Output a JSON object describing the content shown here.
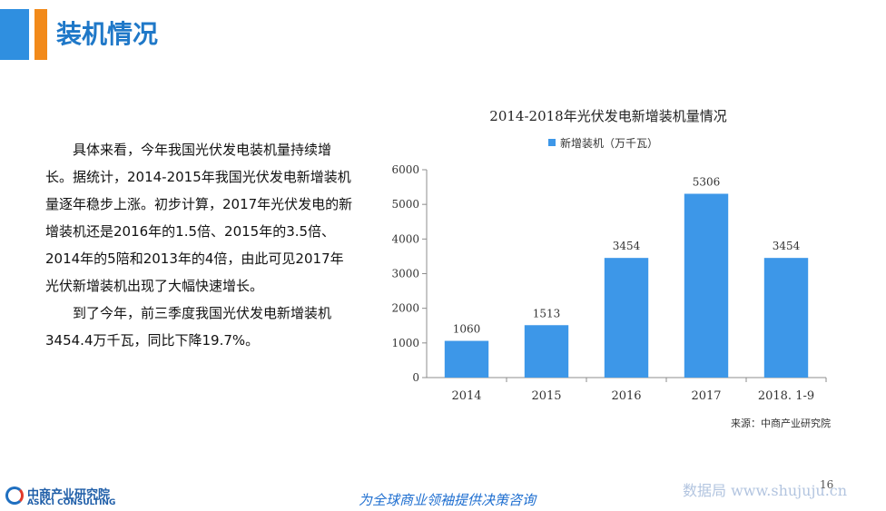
{
  "header": {
    "title": "装机情况"
  },
  "body_text": {
    "para1": "具体来看，今年我国光伏发电装机量持续增长。据统计，2014-2015年我国光伏发电新增装机量逐年稳步上涨。初步计算，2017年光伏发电的新增装机还是2016年的1.5倍、2015年的3.5倍、2014年的5陪和2013年的4倍，由此可见2017年光伏新增装机出现了大幅快速增长。",
    "para2": "到了今年，前三季度我国光伏发电新增装机3454.4万千瓦，同比下降19.7%。"
  },
  "chart_data": {
    "type": "bar",
    "title": "2014-2018年光伏发电新增装机量情况",
    "categories": [
      "2014",
      "2015",
      "2016",
      "2017",
      "2018. 1-9"
    ],
    "series": [
      {
        "name": "新增装机（万千瓦）",
        "values": [
          1060,
          1513,
          3454,
          5306,
          3454
        ],
        "color": "#3d97e8"
      }
    ],
    "ylim": [
      0,
      6000
    ],
    "yticks": [
      0,
      1000,
      2000,
      3000,
      4000,
      5000,
      6000
    ],
    "data_labels": [
      "1060",
      "1513",
      "3454",
      "5306",
      "3454"
    ],
    "legend_position": "top",
    "grid": false
  },
  "source": "来源：中商产业研究院",
  "footer": {
    "logo_cn": "中商产业研究院",
    "logo_en": "ASKCI CONSULTING",
    "slogan": "为全球商业领袖提供决策咨询",
    "page_number": "16",
    "watermark": "数据局 www.shujuju.cn"
  },
  "colors": {
    "title_blue": "#1f78c8",
    "accent_orange": "#f28a1a",
    "bar_blue": "#3d97e8"
  }
}
